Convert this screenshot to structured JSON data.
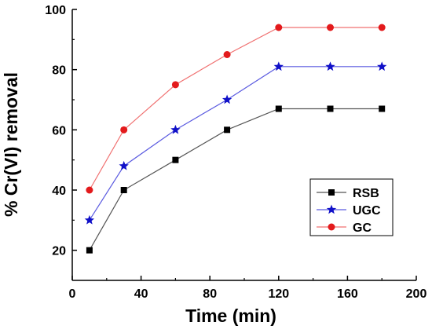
{
  "chart_data": {
    "type": "line",
    "xlabel": "Time (min)",
    "ylabel": "% Cr(VI) removal",
    "xlim": [
      0,
      200
    ],
    "ylim": [
      10,
      100
    ],
    "x_ticks": [
      0,
      40,
      80,
      120,
      160,
      200
    ],
    "y_ticks": [
      20,
      40,
      60,
      80,
      100
    ],
    "grid": false,
    "legend_position": "right",
    "x": [
      10,
      30,
      60,
      90,
      120,
      150,
      180
    ],
    "series": [
      {
        "name": "RSB",
        "values": [
          20,
          40,
          50,
          60,
          67,
          67,
          67
        ],
        "color": "#000000",
        "line_color": "#555555",
        "marker": "square"
      },
      {
        "name": "UGC",
        "values": [
          30,
          48,
          60,
          70,
          81,
          81,
          81
        ],
        "color": "#1010c8",
        "line_color": "#5a5ae0",
        "marker": "star"
      },
      {
        "name": "GC",
        "values": [
          40,
          60,
          75,
          85,
          94,
          94,
          94
        ],
        "color": "#e31a1c",
        "line_color": "#f07070",
        "marker": "circle"
      }
    ]
  }
}
